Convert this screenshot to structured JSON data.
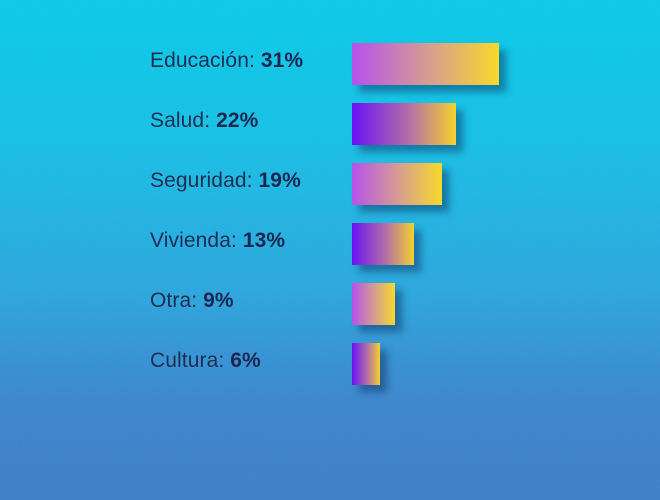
{
  "chart_data": {
    "type": "bar",
    "orientation": "horizontal",
    "categories": [
      "Educación",
      "Salud",
      "Seguridad",
      "Vivienda",
      "Otra",
      "Cultura"
    ],
    "values": [
      31,
      22,
      19,
      13,
      9,
      6
    ],
    "value_labels": [
      "31%",
      "22%",
      "19%",
      "13%",
      "9%",
      "6%"
    ],
    "title": "",
    "xlabel": "",
    "ylabel": "",
    "grid": false,
    "legend": "none",
    "colors": {
      "bar_gradient_a": [
        "#b552ec",
        "#d8a18a",
        "#f6d92c"
      ],
      "bar_gradient_b": [
        "#6a12f5",
        "#b46fa6",
        "#f3d12e"
      ],
      "label_text": "#1f2d52"
    }
  }
}
